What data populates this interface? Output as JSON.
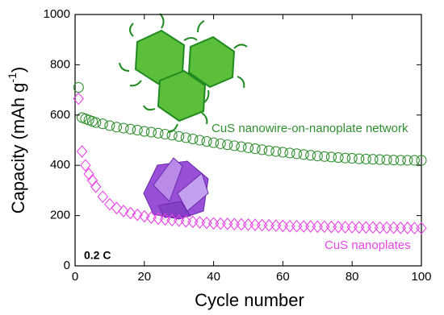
{
  "chart_data": {
    "type": "scatter",
    "x_label": "Cycle number",
    "y_label": [
      "Capacity (mAh g",
      "-1",
      ")"
    ],
    "annotations": [
      "CuS nanowire-on-nanoplate network",
      "CuS nanoplates",
      "0.2 C"
    ],
    "xlim": [
      0,
      100
    ],
    "xticks": [
      0,
      20,
      40,
      60,
      80,
      100
    ],
    "ylim": [
      0,
      1000
    ],
    "yticks": [
      0,
      200,
      400,
      600,
      800,
      1000
    ],
    "x": [
      1,
      2,
      3,
      4,
      5,
      6,
      8,
      10,
      12,
      14,
      16,
      18,
      20,
      22,
      24,
      26,
      28,
      30,
      32,
      34,
      36,
      38,
      40,
      42,
      44,
      46,
      48,
      50,
      52,
      54,
      56,
      58,
      60,
      62,
      64,
      66,
      68,
      70,
      72,
      74,
      76,
      78,
      80,
      82,
      84,
      86,
      88,
      90,
      92,
      94,
      96,
      98,
      100
    ],
    "series": [
      {
        "color": "#2f8f2f",
        "marker": "circle",
        "values": [
          710,
          590,
          585,
          580,
          575,
          570,
          565,
          558,
          552,
          548,
          544,
          540,
          535,
          532,
          528,
          524,
          520,
          515,
          510,
          505,
          500,
          495,
          490,
          486,
          482,
          478,
          474,
          470,
          466,
          462,
          458,
          455,
          452,
          449,
          446,
          443,
          440,
          437,
          435,
          433,
          431,
          429,
          428,
          426,
          425,
          424,
          423,
          422,
          421,
          420,
          420,
          420,
          420
        ]
      },
      {
        "color": "#e845e8",
        "marker": "diamond",
        "values": [
          665,
          455,
          400,
          365,
          340,
          315,
          275,
          245,
          230,
          218,
          210,
          203,
          197,
          192,
          188,
          185,
          182,
          180,
          177,
          175,
          173,
          171,
          169,
          168,
          167,
          166,
          165,
          164,
          163,
          162,
          161,
          160,
          159,
          158,
          158,
          157,
          157,
          156,
          156,
          155,
          155,
          154,
          154,
          153,
          153,
          153,
          152,
          152,
          152,
          151,
          151,
          150,
          150
        ]
      }
    ]
  }
}
